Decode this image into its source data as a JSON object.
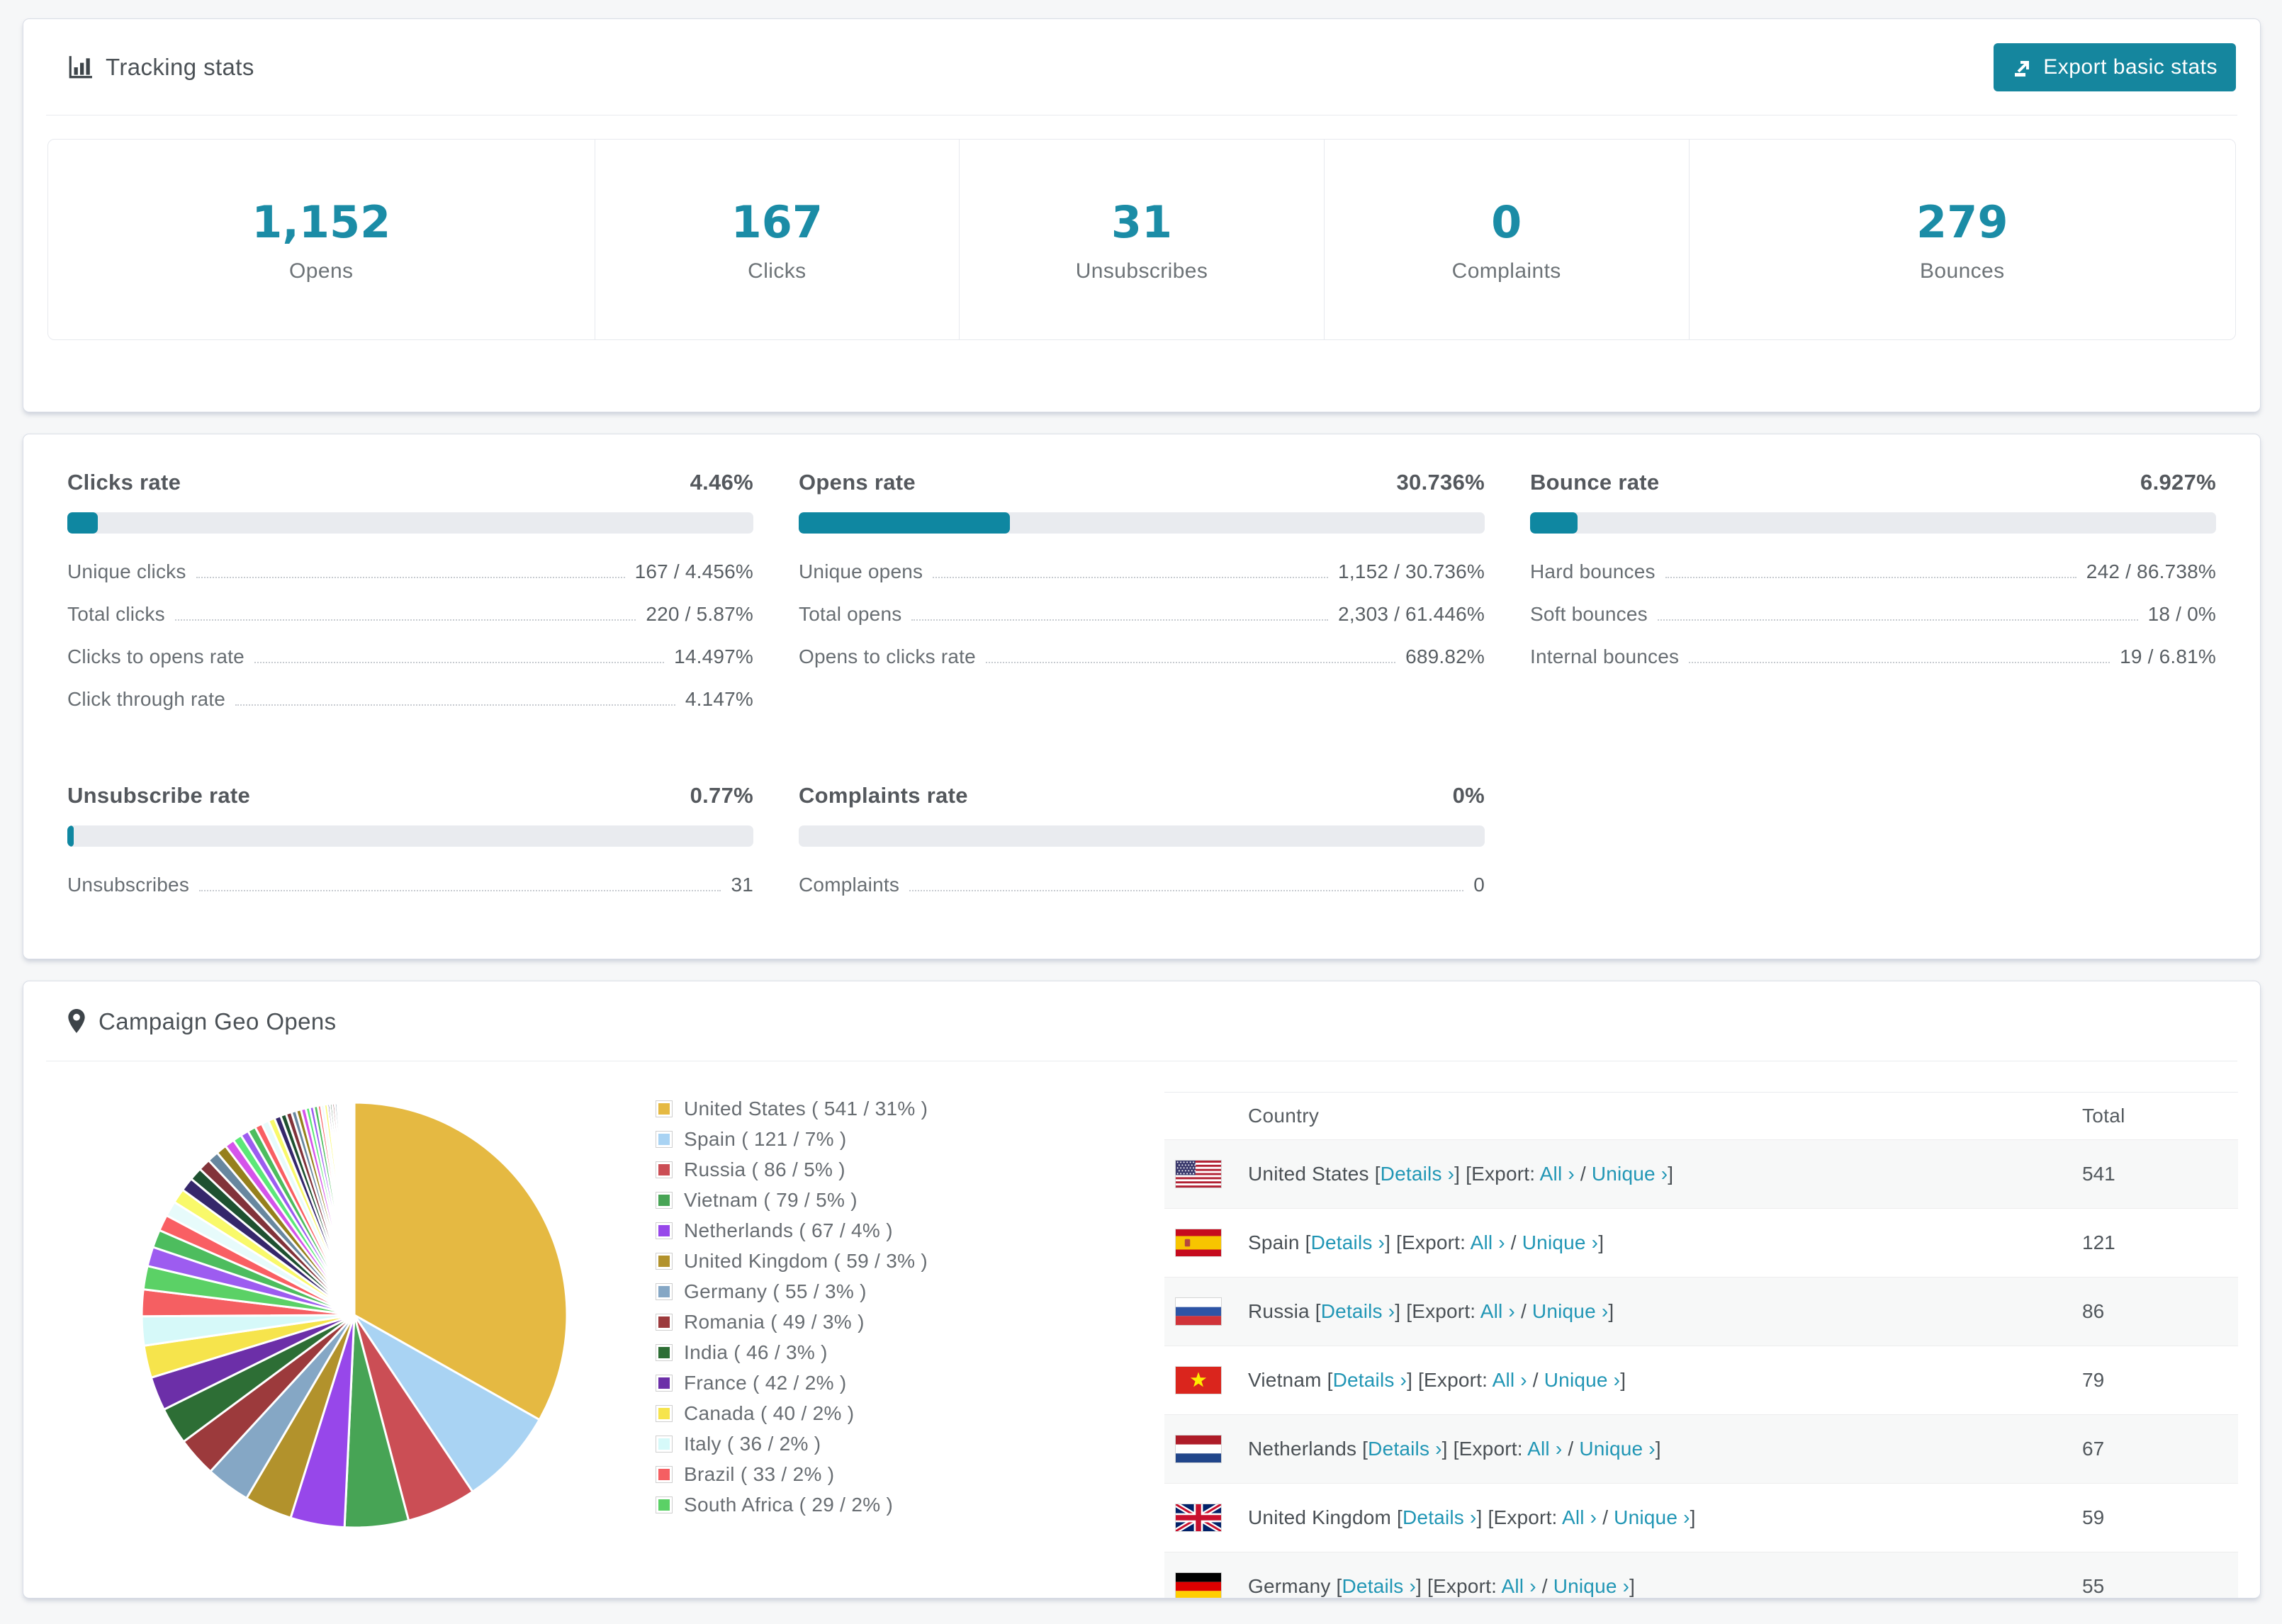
{
  "tracking_card": {
    "title": "Tracking stats",
    "export_button_label": "Export basic stats",
    "stats": [
      {
        "value": "1,152",
        "label": "Opens"
      },
      {
        "value": "167",
        "label": "Clicks"
      },
      {
        "value": "31",
        "label": "Unsubscribes"
      },
      {
        "value": "0",
        "label": "Complaints"
      },
      {
        "value": "279",
        "label": "Bounces"
      }
    ]
  },
  "rates_card": {
    "blocks": [
      {
        "title": "Clicks rate",
        "value": "4.46%",
        "pct": 4.46,
        "rows": [
          [
            "Unique clicks",
            "167 / 4.456%"
          ],
          [
            "Total clicks",
            "220 / 5.87%"
          ],
          [
            "Clicks to opens rate",
            "14.497%"
          ],
          [
            "Click through rate",
            "4.147%"
          ]
        ]
      },
      {
        "title": "Opens rate",
        "value": "30.736%",
        "pct": 30.736,
        "rows": [
          [
            "Unique opens",
            "1,152 / 30.736%"
          ],
          [
            "Total opens",
            "2,303 / 61.446%"
          ],
          [
            "Opens to clicks rate",
            "689.82%"
          ]
        ]
      },
      {
        "title": "Bounce rate",
        "value": "6.927%",
        "pct": 6.927,
        "rows": [
          [
            "Hard bounces",
            "242 / 86.738%"
          ],
          [
            "Soft bounces",
            "18 / 0%"
          ],
          [
            "Internal bounces",
            "19 / 6.81%"
          ]
        ]
      },
      {
        "title": "Unsubscribe rate",
        "value": "0.77%",
        "pct": 0.77,
        "rows": [
          [
            "Unsubscribes",
            "31"
          ]
        ]
      },
      {
        "title": "Complaints rate",
        "value": "0%",
        "pct": 0,
        "rows": [
          [
            "Complaints",
            "0"
          ]
        ]
      }
    ]
  },
  "geo_card": {
    "title": "Campaign Geo Opens",
    "legend": [
      {
        "name": "United States",
        "count": "541",
        "pct": "31%"
      },
      {
        "name": "Spain",
        "count": "121",
        "pct": "7%"
      },
      {
        "name": "Russia",
        "count": "86",
        "pct": "5%"
      },
      {
        "name": "Vietnam",
        "count": "79",
        "pct": "5%"
      },
      {
        "name": "Netherlands",
        "count": "67",
        "pct": "4%"
      },
      {
        "name": "United Kingdom",
        "count": "59",
        "pct": "3%"
      },
      {
        "name": "Germany",
        "count": "55",
        "pct": "3%"
      },
      {
        "name": "Romania",
        "count": "49",
        "pct": "3%"
      },
      {
        "name": "India",
        "count": "46",
        "pct": "3%"
      },
      {
        "name": "France",
        "count": "42",
        "pct": "2%"
      },
      {
        "name": "Canada",
        "count": "40",
        "pct": "2%"
      },
      {
        "name": "Italy",
        "count": "36",
        "pct": "2%"
      },
      {
        "name": "Brazil",
        "count": "33",
        "pct": "2%"
      },
      {
        "name": "South Africa",
        "count": "29",
        "pct": "2%"
      }
    ],
    "table": {
      "columns": [
        "Country",
        "Total"
      ],
      "links": {
        "details": "Details ›",
        "export_prefix": "[Export:",
        "all": "All ›",
        "slash": " / ",
        "unique": "Unique ›"
      },
      "rows": [
        {
          "country": "United States",
          "flag": "us",
          "total": "541"
        },
        {
          "country": "Spain",
          "flag": "es",
          "total": "121"
        },
        {
          "country": "Russia",
          "flag": "ru",
          "total": "86"
        },
        {
          "country": "Vietnam",
          "flag": "vn",
          "total": "79"
        },
        {
          "country": "Netherlands",
          "flag": "nl",
          "total": "67"
        },
        {
          "country": "United Kingdom",
          "flag": "gb",
          "total": "59"
        },
        {
          "country": "Germany",
          "flag": "de",
          "total": "55"
        }
      ]
    }
  },
  "chart_data": {
    "type": "pie",
    "title": "Campaign Geo Opens",
    "legend_position": "right",
    "start_angle_deg": 0,
    "direction": "clockwise",
    "series": [
      {
        "name": "United States",
        "value": 541,
        "pct_label": "31%",
        "color": "#e5b942"
      },
      {
        "name": "Spain",
        "value": 121,
        "pct_label": "7%",
        "color": "#a9d3f3"
      },
      {
        "name": "Russia",
        "value": 86,
        "pct_label": "5%",
        "color": "#cb4e55"
      },
      {
        "name": "Vietnam",
        "value": 79,
        "pct_label": "5%",
        "color": "#47a455"
      },
      {
        "name": "Netherlands",
        "value": 67,
        "pct_label": "4%",
        "color": "#9747ea"
      },
      {
        "name": "United Kingdom",
        "value": 59,
        "pct_label": "3%",
        "color": "#b2922c"
      },
      {
        "name": "Germany",
        "value": 55,
        "pct_label": "3%",
        "color": "#85a7c5"
      },
      {
        "name": "Romania",
        "value": 49,
        "pct_label": "3%",
        "color": "#9c3a3c"
      },
      {
        "name": "India",
        "value": 46,
        "pct_label": "3%",
        "color": "#2d6e35"
      },
      {
        "name": "France",
        "value": 42,
        "pct_label": "2%",
        "color": "#6c2fa8"
      },
      {
        "name": "Canada",
        "value": 40,
        "pct_label": "2%",
        "color": "#f6e44c"
      },
      {
        "name": "Italy",
        "value": 36,
        "pct_label": "2%",
        "color": "#d6f9f9"
      },
      {
        "name": "Brazil",
        "value": 33,
        "pct_label": "2%",
        "color": "#f55f62"
      },
      {
        "name": "South Africa",
        "value": 29,
        "pct_label": "2%",
        "color": "#5bd166"
      }
    ],
    "others_estimated": {
      "note": "unlabeled long tail of small country slices, values estimated from slice widths",
      "weights": [
        24,
        22,
        20,
        19,
        18,
        17,
        16,
        15,
        14,
        13,
        12,
        11,
        10,
        10,
        9,
        9,
        8,
        8,
        7,
        7,
        6,
        6,
        6,
        5,
        5,
        5,
        4,
        4,
        4,
        3,
        3,
        3,
        3,
        2,
        2,
        2,
        2,
        2,
        2,
        1,
        1,
        1,
        1,
        1,
        1,
        1,
        1,
        1
      ],
      "palette": [
        "#9d5cf0",
        "#4dbd5e",
        "#f95f63",
        "#e7fbfb",
        "#f9f96a",
        "#35276b",
        "#1e5130",
        "#82333a",
        "#68879f",
        "#96801c",
        "#d554ea",
        "#5ce878"
      ]
    }
  }
}
